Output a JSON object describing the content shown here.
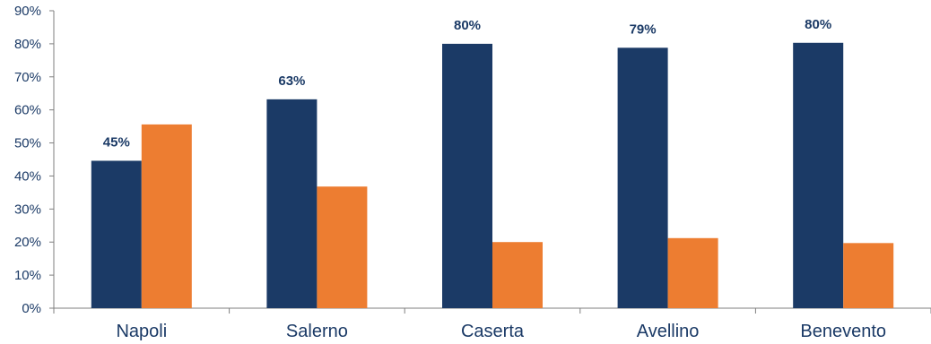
{
  "chart_data": {
    "type": "bar",
    "title": "",
    "xlabel": "",
    "ylabel": "",
    "categories": [
      "Napoli",
      "Salerno",
      "Caserta",
      "Avellino",
      "Benevento"
    ],
    "series": [
      {
        "values": [
          44.6,
          63.2,
          80.0,
          78.8,
          80.3
        ],
        "color": "#1b3a66",
        "labels": [
          "45%",
          "63%",
          "80%",
          "79%",
          "80%"
        ]
      },
      {
        "values": [
          55.6,
          36.8,
          20.0,
          21.2,
          19.7
        ],
        "color": "#ed7d31"
      }
    ],
    "ylim": [
      0,
      90
    ],
    "yticks": [
      "0%",
      "10%",
      "20%",
      "30%",
      "40%",
      "50%",
      "60%",
      "70%",
      "80%",
      "90%"
    ],
    "grid": false,
    "legend": "none"
  }
}
